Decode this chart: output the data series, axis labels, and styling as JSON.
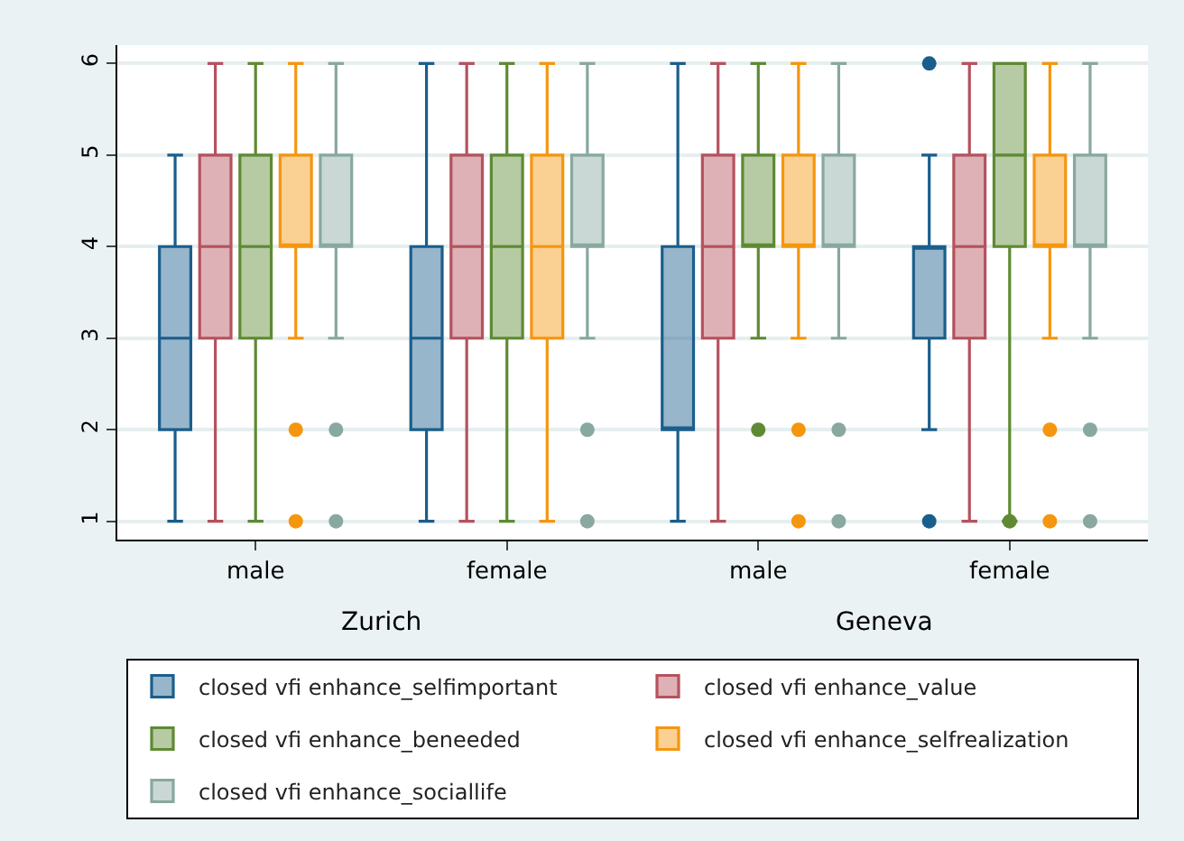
{
  "chart_data": {
    "type": "box",
    "categories": [
      "male",
      "female",
      "male",
      "female"
    ],
    "annotations": [
      "Zurich",
      "Geneva"
    ],
    "ylim": [
      0.8,
      6.2
    ],
    "yticks": [
      1,
      2,
      3,
      4,
      5,
      6
    ],
    "grid": "y",
    "legend": "bottom",
    "series": [
      {
        "name": "closed vfi enhance_selfimportant",
        "color": "#1a5e8c",
        "boxes": [
          {
            "low": 1,
            "q1": 2,
            "median": 3,
            "q3": 4,
            "high": 5
          },
          {
            "low": 1,
            "q1": 2,
            "median": 3,
            "q3": 4,
            "high": 6
          },
          {
            "low": 1,
            "q1": 2,
            "median": 2,
            "q3": 4,
            "high": 6
          },
          {
            "low": 2,
            "q1": 3,
            "median": 4,
            "q3": 4,
            "high": 5,
            "outliers": [
              6,
              1
            ]
          }
        ]
      },
      {
        "name": "closed vfi enhance_value",
        "color": "#b5525e",
        "boxes": [
          {
            "low": 1,
            "q1": 3,
            "median": 4,
            "q3": 5,
            "high": 6
          },
          {
            "low": 1,
            "q1": 3,
            "median": 4,
            "q3": 5,
            "high": 6
          },
          {
            "low": 1,
            "q1": 3,
            "median": 4,
            "q3": 5,
            "high": 6
          },
          {
            "low": 1,
            "q1": 3,
            "median": 4,
            "q3": 5,
            "high": 6
          }
        ]
      },
      {
        "name": "closed vfi enhance_beneeded",
        "color": "#5e8a33",
        "boxes": [
          {
            "low": 1,
            "q1": 3,
            "median": 4,
            "q3": 5,
            "high": 6
          },
          {
            "low": 1,
            "q1": 3,
            "median": 4,
            "q3": 5,
            "high": 6
          },
          {
            "low": 3,
            "q1": 4,
            "median": 4,
            "q3": 5,
            "high": 6,
            "outliers": [
              2
            ]
          },
          {
            "low": 1,
            "q1": 4,
            "median": 5,
            "q3": 6,
            "high": 6,
            "outliers": [
              1
            ]
          }
        ]
      },
      {
        "name": "closed vfi enhance_selfrealization",
        "color": "#f5960f",
        "boxes": [
          {
            "low": 3,
            "q1": 4,
            "median": 4,
            "q3": 5,
            "high": 6,
            "outliers": [
              2,
              1
            ]
          },
          {
            "low": 1,
            "q1": 3,
            "median": 4,
            "q3": 5,
            "high": 6
          },
          {
            "low": 3,
            "q1": 4,
            "median": 4,
            "q3": 5,
            "high": 6,
            "outliers": [
              2,
              1
            ]
          },
          {
            "low": 3,
            "q1": 4,
            "median": 4,
            "q3": 5,
            "high": 6,
            "outliers": [
              2,
              1
            ]
          }
        ]
      },
      {
        "name": "closed vfi enhance_sociallife",
        "color": "#88a8a0",
        "boxes": [
          {
            "low": 3,
            "q1": 4,
            "median": 4,
            "q3": 5,
            "high": 6,
            "outliers": [
              2,
              1
            ]
          },
          {
            "low": 3,
            "q1": 4,
            "median": 4,
            "q3": 5,
            "high": 6,
            "outliers": [
              2,
              1
            ]
          },
          {
            "low": 3,
            "q1": 4,
            "median": 4,
            "q3": 5,
            "high": 6,
            "outliers": [
              2,
              1
            ]
          },
          {
            "low": 3,
            "q1": 4,
            "median": 4,
            "q3": 5,
            "high": 6,
            "outliers": [
              2,
              1
            ]
          }
        ]
      }
    ]
  }
}
